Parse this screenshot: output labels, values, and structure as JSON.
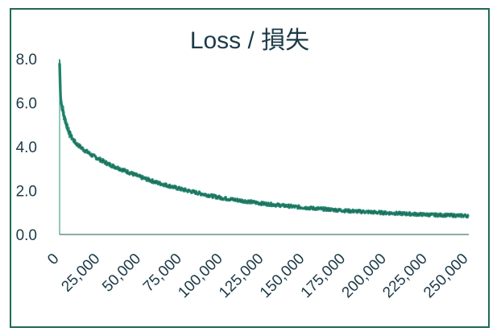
{
  "chart_data": {
    "type": "line",
    "title": "Loss / 損失",
    "xlabel": "",
    "ylabel": "",
    "xlim": [
      0,
      250000
    ],
    "ylim": [
      0,
      8
    ],
    "x_ticks": [
      "0",
      "25,000",
      "50,000",
      "75,000",
      "100,000",
      "125,000",
      "150,000",
      "175,000",
      "200,000",
      "225,000",
      "250,000"
    ],
    "y_ticks": [
      "0.0",
      "2.0",
      "4.0",
      "6.0",
      "8.0"
    ],
    "grid": false,
    "colors": {
      "line": "#2a9079",
      "line_dark": "#1c5a4a",
      "border": "#1f6b55",
      "text": "#1c3a48"
    },
    "series": [
      {
        "x": [
          0,
          500,
          1000,
          2000,
          3000,
          5000,
          7500,
          10000,
          15000,
          20000,
          25000,
          30000,
          40000,
          50000,
          60000,
          75000,
          90000,
          100000,
          125000,
          150000,
          175000,
          200000,
          225000,
          250000
        ],
        "y": [
          7.8,
          6.4,
          6.0,
          5.6,
          5.3,
          4.8,
          4.4,
          4.15,
          3.85,
          3.6,
          3.4,
          3.2,
          2.9,
          2.6,
          2.35,
          2.05,
          1.8,
          1.65,
          1.4,
          1.22,
          1.08,
          0.98,
          0.9,
          0.85
        ]
      }
    ]
  }
}
